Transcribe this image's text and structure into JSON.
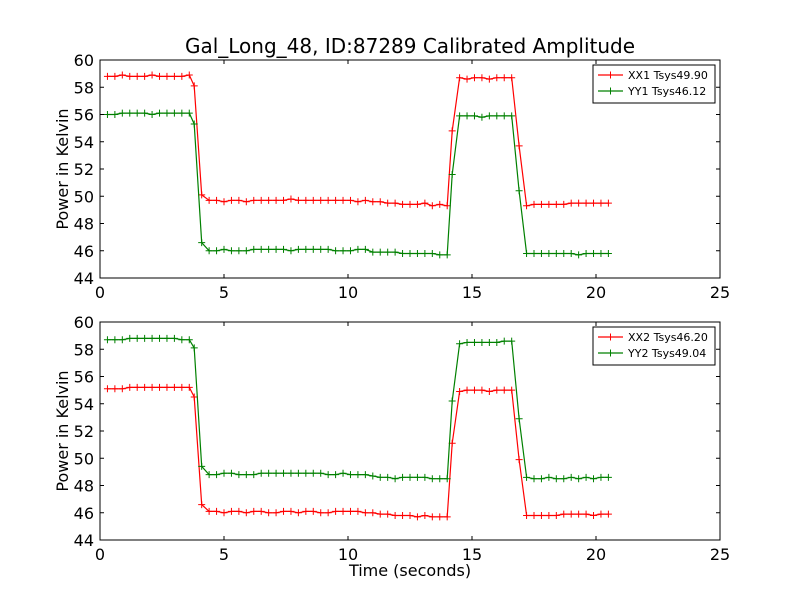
{
  "title": "Gal_Long_48, ID:87289 Calibrated Amplitude",
  "colors": {
    "red": "#ff0000",
    "green": "#008000"
  },
  "chart_data": [
    {
      "type": "line",
      "xlabel": "",
      "ylabel": "Power in Kelvin",
      "xlim": [
        0,
        25
      ],
      "ylim": [
        44,
        60
      ],
      "xticks": [
        0,
        5,
        10,
        15,
        20,
        25
      ],
      "yticks": [
        44,
        46,
        48,
        50,
        52,
        54,
        56,
        58,
        60
      ],
      "grid": false,
      "legend_position": "top-right",
      "x": [
        0.3,
        0.6,
        0.9,
        1.2,
        1.5,
        1.8,
        2.1,
        2.4,
        2.7,
        3.0,
        3.3,
        3.6,
        3.8,
        4.1,
        4.4,
        4.7,
        5.0,
        5.3,
        5.6,
        5.9,
        6.2,
        6.5,
        6.8,
        7.1,
        7.4,
        7.7,
        8.0,
        8.3,
        8.6,
        8.9,
        9.2,
        9.5,
        9.8,
        10.1,
        10.4,
        10.7,
        11.0,
        11.3,
        11.6,
        11.9,
        12.2,
        12.5,
        12.8,
        13.1,
        13.4,
        13.7,
        14.0,
        14.2,
        14.5,
        14.8,
        15.1,
        15.4,
        15.7,
        16.0,
        16.3,
        16.6,
        16.9,
        17.2,
        17.5,
        17.8,
        18.1,
        18.4,
        18.7,
        19.0,
        19.3,
        19.6,
        19.9,
        20.2,
        20.5
      ],
      "series": [
        {
          "name": "XX1 Tsys49.90",
          "color": "#ff0000",
          "values": [
            58.8,
            58.8,
            58.9,
            58.8,
            58.8,
            58.8,
            58.9,
            58.8,
            58.8,
            58.8,
            58.8,
            58.9,
            58.1,
            50.1,
            49.7,
            49.7,
            49.6,
            49.7,
            49.7,
            49.6,
            49.7,
            49.7,
            49.7,
            49.7,
            49.7,
            49.8,
            49.7,
            49.7,
            49.7,
            49.7,
            49.7,
            49.7,
            49.7,
            49.7,
            49.6,
            49.7,
            49.6,
            49.6,
            49.5,
            49.5,
            49.4,
            49.4,
            49.4,
            49.5,
            49.3,
            49.4,
            49.3,
            54.8,
            58.7,
            58.6,
            58.7,
            58.7,
            58.6,
            58.7,
            58.7,
            58.7,
            53.7,
            49.3,
            49.4,
            49.4,
            49.4,
            49.4,
            49.4,
            49.5,
            49.5,
            49.5,
            49.5,
            49.5,
            49.5
          ]
        },
        {
          "name": "YY1 Tsys46.12",
          "color": "#008000",
          "values": [
            56.0,
            56.0,
            56.1,
            56.1,
            56.1,
            56.1,
            56.0,
            56.1,
            56.1,
            56.1,
            56.1,
            56.1,
            55.3,
            46.6,
            46.0,
            46.0,
            46.1,
            46.0,
            46.0,
            46.0,
            46.1,
            46.1,
            46.1,
            46.1,
            46.1,
            46.0,
            46.1,
            46.1,
            46.1,
            46.1,
            46.1,
            46.0,
            46.0,
            46.0,
            46.1,
            46.1,
            45.9,
            45.9,
            45.9,
            45.9,
            45.8,
            45.8,
            45.8,
            45.8,
            45.8,
            45.7,
            45.7,
            51.6,
            55.9,
            55.9,
            55.9,
            55.8,
            55.9,
            55.9,
            55.9,
            55.9,
            50.4,
            45.8,
            45.8,
            45.8,
            45.8,
            45.8,
            45.8,
            45.8,
            45.7,
            45.8,
            45.8,
            45.8,
            45.8
          ]
        }
      ]
    },
    {
      "type": "line",
      "xlabel": "Time (seconds)",
      "ylabel": "Power in Kelvin",
      "xlim": [
        0,
        25
      ],
      "ylim": [
        44,
        60
      ],
      "xticks": [
        0,
        5,
        10,
        15,
        20,
        25
      ],
      "yticks": [
        44,
        46,
        48,
        50,
        52,
        54,
        56,
        58,
        60
      ],
      "grid": false,
      "legend_position": "top-right",
      "x": [
        0.3,
        0.6,
        0.9,
        1.2,
        1.5,
        1.8,
        2.1,
        2.4,
        2.7,
        3.0,
        3.3,
        3.6,
        3.8,
        4.1,
        4.4,
        4.7,
        5.0,
        5.3,
        5.6,
        5.9,
        6.2,
        6.5,
        6.8,
        7.1,
        7.4,
        7.7,
        8.0,
        8.3,
        8.6,
        8.9,
        9.2,
        9.5,
        9.8,
        10.1,
        10.4,
        10.7,
        11.0,
        11.3,
        11.6,
        11.9,
        12.2,
        12.5,
        12.8,
        13.1,
        13.4,
        13.7,
        14.0,
        14.2,
        14.5,
        14.8,
        15.1,
        15.4,
        15.7,
        16.0,
        16.3,
        16.6,
        16.9,
        17.2,
        17.5,
        17.8,
        18.1,
        18.4,
        18.7,
        19.0,
        19.3,
        19.6,
        19.9,
        20.2,
        20.5
      ],
      "series": [
        {
          "name": "XX2 Tsys46.20",
          "color": "#ff0000",
          "values": [
            55.1,
            55.1,
            55.1,
            55.2,
            55.2,
            55.2,
            55.2,
            55.2,
            55.2,
            55.2,
            55.2,
            55.2,
            54.5,
            46.6,
            46.1,
            46.1,
            46.0,
            46.1,
            46.1,
            46.0,
            46.1,
            46.1,
            46.0,
            46.0,
            46.1,
            46.1,
            46.0,
            46.1,
            46.1,
            46.0,
            46.0,
            46.1,
            46.1,
            46.1,
            46.1,
            46.0,
            46.0,
            45.9,
            45.9,
            45.8,
            45.8,
            45.8,
            45.7,
            45.8,
            45.7,
            45.7,
            45.7,
            51.1,
            54.9,
            55.0,
            55.0,
            55.0,
            54.9,
            55.0,
            55.0,
            55.0,
            49.9,
            45.8,
            45.8,
            45.8,
            45.8,
            45.8,
            45.9,
            45.9,
            45.9,
            45.9,
            45.8,
            45.9,
            45.9
          ]
        },
        {
          "name": "YY2 Tsys49.04",
          "color": "#008000",
          "values": [
            58.7,
            58.7,
            58.7,
            58.8,
            58.8,
            58.8,
            58.8,
            58.8,
            58.8,
            58.8,
            58.7,
            58.7,
            58.1,
            49.4,
            48.8,
            48.8,
            48.9,
            48.9,
            48.8,
            48.8,
            48.8,
            48.9,
            48.9,
            48.9,
            48.9,
            48.9,
            48.9,
            48.9,
            48.9,
            48.9,
            48.8,
            48.8,
            48.9,
            48.8,
            48.8,
            48.8,
            48.7,
            48.6,
            48.6,
            48.5,
            48.6,
            48.6,
            48.6,
            48.6,
            48.5,
            48.5,
            48.5,
            54.2,
            58.4,
            58.5,
            58.5,
            58.5,
            58.5,
            58.5,
            58.6,
            58.6,
            52.9,
            48.6,
            48.5,
            48.5,
            48.6,
            48.5,
            48.5,
            48.6,
            48.5,
            48.6,
            48.5,
            48.6,
            48.6
          ]
        }
      ]
    }
  ]
}
